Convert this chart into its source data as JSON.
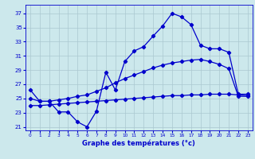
{
  "xlabel": "Graphe des températures (°c)",
  "bg_color": "#cce8ec",
  "grid_color": "#aac8d0",
  "line_color": "#0000cc",
  "ylim": [
    20.5,
    38.2
  ],
  "xlim": [
    -0.5,
    23.5
  ],
  "yticks": [
    21,
    23,
    25,
    27,
    29,
    31,
    33,
    35,
    37
  ],
  "xticks": [
    0,
    1,
    2,
    3,
    4,
    5,
    6,
    7,
    8,
    9,
    10,
    11,
    12,
    13,
    14,
    15,
    16,
    17,
    18,
    19,
    20,
    21,
    22,
    23
  ],
  "series1_x": [
    0,
    1,
    2,
    3,
    4,
    5,
    6,
    7,
    8,
    9,
    10,
    11,
    12,
    13,
    14,
    15,
    16,
    17,
    18,
    19,
    20,
    21,
    22,
    23
  ],
  "series1_y": [
    26.2,
    24.6,
    24.6,
    23.1,
    23.1,
    21.7,
    21.0,
    23.2,
    28.7,
    26.2,
    30.2,
    31.7,
    32.3,
    33.8,
    35.2,
    37.0,
    36.5,
    35.4,
    32.5,
    32.0,
    32.0,
    31.5,
    25.6,
    25.6
  ],
  "series2_x": [
    0,
    1,
    2,
    3,
    4,
    5,
    6,
    7,
    8,
    9,
    10,
    11,
    12,
    13,
    14,
    15,
    16,
    17,
    18,
    19,
    20,
    21,
    22,
    23
  ],
  "series2_y": [
    25.0,
    24.6,
    24.6,
    24.8,
    25.0,
    25.3,
    25.5,
    26.0,
    26.5,
    27.2,
    27.8,
    28.3,
    28.8,
    29.3,
    29.7,
    30.0,
    30.2,
    30.4,
    30.5,
    30.2,
    29.8,
    29.2,
    25.3,
    25.3
  ],
  "series3_x": [
    0,
    1,
    2,
    3,
    4,
    5,
    6,
    7,
    8,
    9,
    10,
    11,
    12,
    13,
    14,
    15,
    16,
    17,
    18,
    19,
    20,
    21,
    22,
    23
  ],
  "series3_y": [
    24.0,
    24.0,
    24.1,
    24.2,
    24.3,
    24.4,
    24.5,
    24.6,
    24.7,
    24.8,
    24.9,
    25.0,
    25.1,
    25.2,
    25.3,
    25.4,
    25.4,
    25.5,
    25.5,
    25.6,
    25.6,
    25.6,
    25.5,
    25.4
  ]
}
